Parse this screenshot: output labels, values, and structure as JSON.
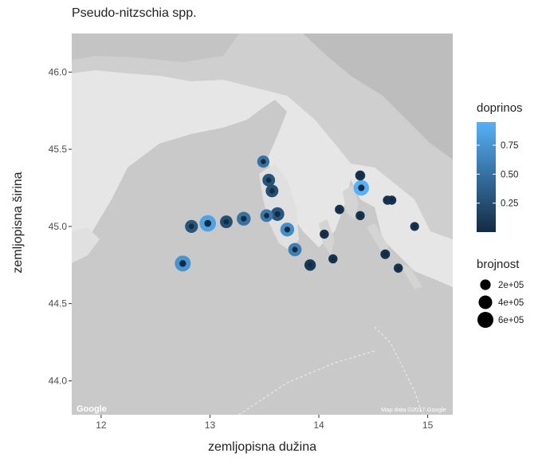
{
  "chart_data": {
    "type": "scatter",
    "title": "Pseudo-nitzschia spp.",
    "xlabel": "zemljopisna dužina",
    "ylabel": "zemljopisna širina",
    "xlim": [
      11.73,
      15.23
    ],
    "ylim": [
      43.78,
      46.25
    ],
    "x_ticks": [
      12,
      13,
      14,
      15
    ],
    "y_ticks": [
      44.0,
      44.5,
      45.0,
      45.5,
      46.0
    ],
    "x_tick_labels": [
      "12",
      "13",
      "14",
      "15"
    ],
    "y_tick_labels": [
      "44.0",
      "44.5",
      "45.0",
      "45.5",
      "46.0"
    ],
    "color_legend": {
      "title": "doprinos",
      "labels": [
        "0.75",
        "0.50",
        "0.25"
      ],
      "values": [
        0.75,
        0.5,
        0.25
      ],
      "range": [
        0.0,
        0.95
      ],
      "low_color": "#132b43",
      "high_color": "#56b1f7"
    },
    "size_legend": {
      "title": "brojnost",
      "labels": [
        "2e+05",
        "4e+05",
        "6e+05"
      ],
      "values": [
        200000,
        400000,
        600000
      ]
    },
    "points": [
      {
        "lon": 12.75,
        "lat": 44.76,
        "doprinos": 0.75,
        "brojnost": 600000
      },
      {
        "lon": 12.83,
        "lat": 45.0,
        "doprinos": 0.3,
        "brojnost": 350000
      },
      {
        "lon": 12.98,
        "lat": 45.02,
        "doprinos": 0.85,
        "brojnost": 650000
      },
      {
        "lon": 13.15,
        "lat": 45.03,
        "doprinos": 0.25,
        "brojnost": 330000
      },
      {
        "lon": 13.31,
        "lat": 45.05,
        "doprinos": 0.5,
        "brojnost": 420000
      },
      {
        "lon": 13.49,
        "lat": 45.42,
        "doprinos": 0.5,
        "brojnost": 300000
      },
      {
        "lon": 13.54,
        "lat": 45.3,
        "doprinos": 0.3,
        "brojnost": 330000
      },
      {
        "lon": 13.57,
        "lat": 45.23,
        "doprinos": 0.25,
        "brojnost": 330000
      },
      {
        "lon": 13.52,
        "lat": 45.07,
        "doprinos": 0.55,
        "brojnost": 330000
      },
      {
        "lon": 13.62,
        "lat": 45.08,
        "doprinos": 0.3,
        "brojnost": 400000
      },
      {
        "lon": 13.71,
        "lat": 44.98,
        "doprinos": 0.7,
        "brojnost": 420000
      },
      {
        "lon": 13.78,
        "lat": 44.85,
        "doprinos": 0.6,
        "brojnost": 380000
      },
      {
        "lon": 13.92,
        "lat": 44.75,
        "doprinos": 0.1,
        "brojnost": 250000
      },
      {
        "lon": 14.05,
        "lat": 44.95,
        "doprinos": 0.05,
        "brojnost": 130000
      },
      {
        "lon": 14.13,
        "lat": 44.79,
        "doprinos": 0.05,
        "brojnost": 130000
      },
      {
        "lon": 14.19,
        "lat": 45.11,
        "doprinos": 0.05,
        "brojnost": 140000
      },
      {
        "lon": 14.38,
        "lat": 45.33,
        "doprinos": 0.05,
        "brojnost": 170000
      },
      {
        "lon": 14.39,
        "lat": 45.25,
        "doprinos": 0.95,
        "brojnost": 560000
      },
      {
        "lon": 14.38,
        "lat": 45.07,
        "doprinos": 0.05,
        "brojnost": 130000
      },
      {
        "lon": 14.63,
        "lat": 45.17,
        "doprinos": 0.05,
        "brojnost": 130000
      },
      {
        "lon": 14.67,
        "lat": 45.17,
        "doprinos": 0.05,
        "brojnost": 130000
      },
      {
        "lon": 14.61,
        "lat": 44.82,
        "doprinos": 0.05,
        "brojnost": 150000
      },
      {
        "lon": 14.73,
        "lat": 44.73,
        "doprinos": 0.05,
        "brojnost": 130000
      },
      {
        "lon": 14.88,
        "lat": 45.0,
        "doprinos": 0.05,
        "brojnost": 120000
      }
    ]
  },
  "map": {
    "google_logo": "Google",
    "attribution": "Map data ©2017 Google",
    "water_color": "#c9c9c9",
    "land_color": "#e6e6e6"
  }
}
